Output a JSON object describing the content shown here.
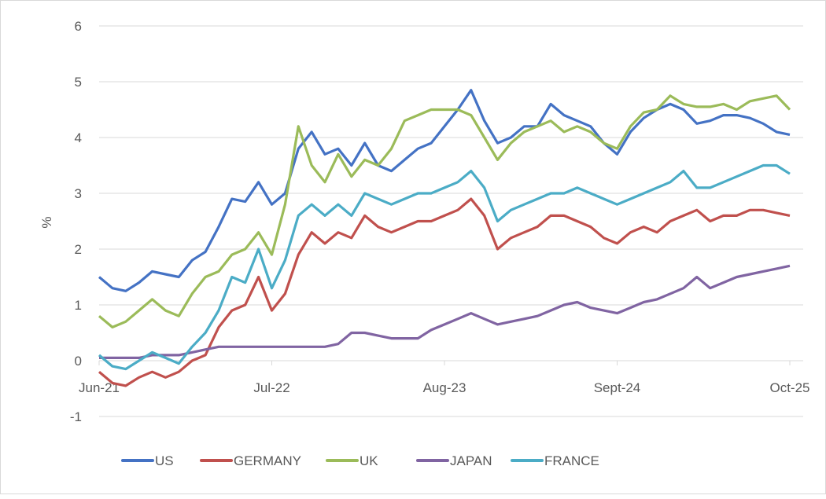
{
  "chart_data": {
    "type": "line",
    "title": "",
    "xlabel": "",
    "ylabel": "%",
    "ylim": [
      -1,
      6
    ],
    "yticks": [
      "-1",
      "0",
      "1",
      "2",
      "3",
      "4",
      "5",
      "6"
    ],
    "xticks": [
      {
        "label": "Jun-21",
        "month": 0
      },
      {
        "label": "Jul-22",
        "month": 13
      },
      {
        "label": "Aug-23",
        "month": 26
      },
      {
        "label": "Sept-24",
        "month": 39
      },
      {
        "label": "Oct-25",
        "month": 52
      }
    ],
    "x_unit": "months since Jun-21",
    "grid": true,
    "legend": "bottom",
    "series": [
      {
        "name": "US",
        "color": "#4472C4",
        "values": [
          1.5,
          1.3,
          1.25,
          1.4,
          1.6,
          1.55,
          1.5,
          1.8,
          1.95,
          2.4,
          2.9,
          2.85,
          3.2,
          2.8,
          3.0,
          3.8,
          4.1,
          3.7,
          3.8,
          3.5,
          3.9,
          3.5,
          3.4,
          3.6,
          3.8,
          3.9,
          4.2,
          4.5,
          4.85,
          4.3,
          3.9,
          4.0,
          4.2,
          4.2,
          4.6,
          4.4,
          4.3,
          4.2,
          3.9,
          3.7,
          4.1,
          4.35,
          4.5,
          4.6,
          4.5,
          4.25,
          4.3,
          4.4,
          4.4,
          4.35,
          4.25,
          4.1,
          4.05
        ]
      },
      {
        "name": "GERMANY",
        "color": "#C0504D",
        "values": [
          -0.2,
          -0.4,
          -0.45,
          -0.3,
          -0.2,
          -0.3,
          -0.2,
          0.0,
          0.1,
          0.6,
          0.9,
          1.0,
          1.5,
          0.9,
          1.2,
          1.9,
          2.3,
          2.1,
          2.3,
          2.2,
          2.6,
          2.4,
          2.3,
          2.4,
          2.5,
          2.5,
          2.6,
          2.7,
          2.9,
          2.6,
          2.0,
          2.2,
          2.3,
          2.4,
          2.6,
          2.6,
          2.5,
          2.4,
          2.2,
          2.1,
          2.3,
          2.4,
          2.3,
          2.5,
          2.6,
          2.7,
          2.5,
          2.6,
          2.6,
          2.7,
          2.7,
          2.65,
          2.6
        ]
      },
      {
        "name": "UK",
        "color": "#9BBB59",
        "values": [
          0.8,
          0.6,
          0.7,
          0.9,
          1.1,
          0.9,
          0.8,
          1.2,
          1.5,
          1.6,
          1.9,
          2.0,
          2.3,
          1.9,
          2.8,
          4.2,
          3.5,
          3.2,
          3.7,
          3.3,
          3.6,
          3.5,
          3.8,
          4.3,
          4.4,
          4.5,
          4.5,
          4.5,
          4.4,
          4.0,
          3.6,
          3.9,
          4.1,
          4.2,
          4.3,
          4.1,
          4.2,
          4.1,
          3.9,
          3.8,
          4.2,
          4.45,
          4.5,
          4.75,
          4.6,
          4.55,
          4.55,
          4.6,
          4.5,
          4.65,
          4.7,
          4.75,
          4.5
        ]
      },
      {
        "name": "JAPAN",
        "color": "#8064A2",
        "values": [
          0.05,
          0.05,
          0.05,
          0.05,
          0.1,
          0.1,
          0.1,
          0.15,
          0.2,
          0.25,
          0.25,
          0.25,
          0.25,
          0.25,
          0.25,
          0.25,
          0.25,
          0.25,
          0.3,
          0.5,
          0.5,
          0.45,
          0.4,
          0.4,
          0.4,
          0.55,
          0.65,
          0.75,
          0.85,
          0.75,
          0.65,
          0.7,
          0.75,
          0.8,
          0.9,
          1.0,
          1.05,
          0.95,
          0.9,
          0.85,
          0.95,
          1.05,
          1.1,
          1.2,
          1.3,
          1.5,
          1.3,
          1.4,
          1.5,
          1.55,
          1.6,
          1.65,
          1.7
        ]
      },
      {
        "name": "FRANCE",
        "color": "#4BACC6",
        "values": [
          0.1,
          -0.1,
          -0.15,
          0.0,
          0.15,
          0.05,
          -0.05,
          0.25,
          0.5,
          0.9,
          1.5,
          1.4,
          2.0,
          1.3,
          1.8,
          2.6,
          2.8,
          2.6,
          2.8,
          2.6,
          3.0,
          2.9,
          2.8,
          2.9,
          3.0,
          3.0,
          3.1,
          3.2,
          3.4,
          3.1,
          2.5,
          2.7,
          2.8,
          2.9,
          3.0,
          3.0,
          3.1,
          3.0,
          2.9,
          2.8,
          2.9,
          3.0,
          3.1,
          3.2,
          3.4,
          3.1,
          3.1,
          3.2,
          3.3,
          3.4,
          3.5,
          3.5,
          3.35
        ]
      }
    ]
  }
}
